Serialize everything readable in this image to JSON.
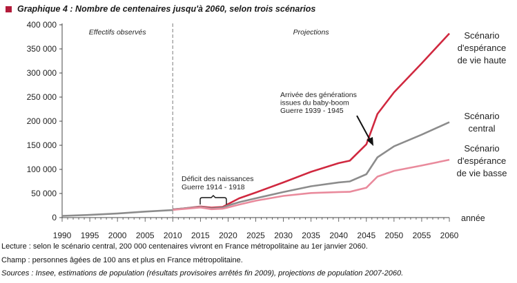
{
  "title": "Graphique 4 : Nombre de centenaires jusqu'à 2060, selon trois scénarios",
  "notes": {
    "lecture": "Lecture : selon le scénario central, 200 000 centenaires vivront en France métropolitaine au 1er janvier 2060.",
    "champ": "Champ : personnes âgées de 100 ans et plus en France métropolitaine.",
    "sources": "Sources : Insee, estimations de population (résultats provisoires arrêtés fin 2009), projections de population 2007-2060."
  },
  "colors": {
    "high": "#d0283f",
    "central": "#8c8c8c",
    "low": "#e98a9c",
    "title_square": "#b31b3a",
    "axis": "#444444",
    "divider": "#999999"
  },
  "chart_data": {
    "type": "line",
    "xlabel": "année",
    "ylabel": "",
    "xlim": [
      1990,
      2060
    ],
    "ylim": [
      0,
      400000
    ],
    "x_ticks": [
      1990,
      1995,
      2000,
      2005,
      2010,
      2015,
      2020,
      2025,
      2030,
      2035,
      2040,
      2045,
      2050,
      2055,
      2060
    ],
    "y_ticks": [
      {
        "value": 0,
        "label": "0"
      },
      {
        "value": 50000,
        "label": "50 000"
      },
      {
        "value": 100000,
        "label": "100 000"
      },
      {
        "value": 150000,
        "label": "150 000"
      },
      {
        "value": 200000,
        "label": "200 000"
      },
      {
        "value": 250000,
        "label": "250 000"
      },
      {
        "value": 300000,
        "label": "300 000"
      },
      {
        "value": 350000,
        "label": "350 000"
      },
      {
        "value": 400000,
        "label": "400 000"
      }
    ],
    "grid": false,
    "divider_year": 2010,
    "period_labels": [
      "Effectifs observés",
      "Projections"
    ],
    "observed": {
      "x": [
        1990,
        1995,
        2000,
        2005,
        2010
      ],
      "y": [
        3600,
        5500,
        8500,
        12500,
        15500
      ]
    },
    "series": [
      {
        "id": "high",
        "label": [
          "Scénario",
          "d'espérance",
          "de vie haute"
        ],
        "x": [
          2010,
          2012,
          2015,
          2017,
          2019,
          2020,
          2022,
          2025,
          2030,
          2035,
          2040,
          2042,
          2045,
          2047,
          2050,
          2055,
          2060
        ],
        "y": [
          17000,
          19000,
          23000,
          20500,
          22000,
          28000,
          40000,
          52000,
          73000,
          95000,
          113000,
          118000,
          152000,
          215000,
          260000,
          320000,
          382000
        ]
      },
      {
        "id": "central",
        "label": [
          "Scénario",
          "central"
        ],
        "x": [
          2010,
          2012,
          2015,
          2017,
          2019,
          2020,
          2022,
          2025,
          2030,
          2035,
          2040,
          2042,
          2045,
          2047,
          2050,
          2055,
          2060
        ],
        "y": [
          17000,
          19000,
          22000,
          19000,
          20500,
          25000,
          32000,
          40000,
          53000,
          65000,
          73000,
          75000,
          90000,
          125000,
          148000,
          172000,
          198000
        ]
      },
      {
        "id": "low",
        "label": [
          "Scénario",
          "d'espérance",
          "de vie basse"
        ],
        "x": [
          2010,
          2012,
          2015,
          2017,
          2019,
          2020,
          2022,
          2025,
          2030,
          2035,
          2040,
          2042,
          2045,
          2047,
          2050,
          2055,
          2060
        ],
        "y": [
          16000,
          18000,
          21000,
          17500,
          18500,
          21000,
          27000,
          35000,
          45000,
          51000,
          53000,
          53500,
          62000,
          85000,
          97000,
          108000,
          120000
        ]
      }
    ],
    "annotations": {
      "boom": [
        "Arrivée des générations",
        "issues du baby-boom",
        "Guerre 1939 - 1945"
      ],
      "deficit": [
        "Déficit des naissances",
        "Guerre 1914 - 1918"
      ]
    }
  }
}
